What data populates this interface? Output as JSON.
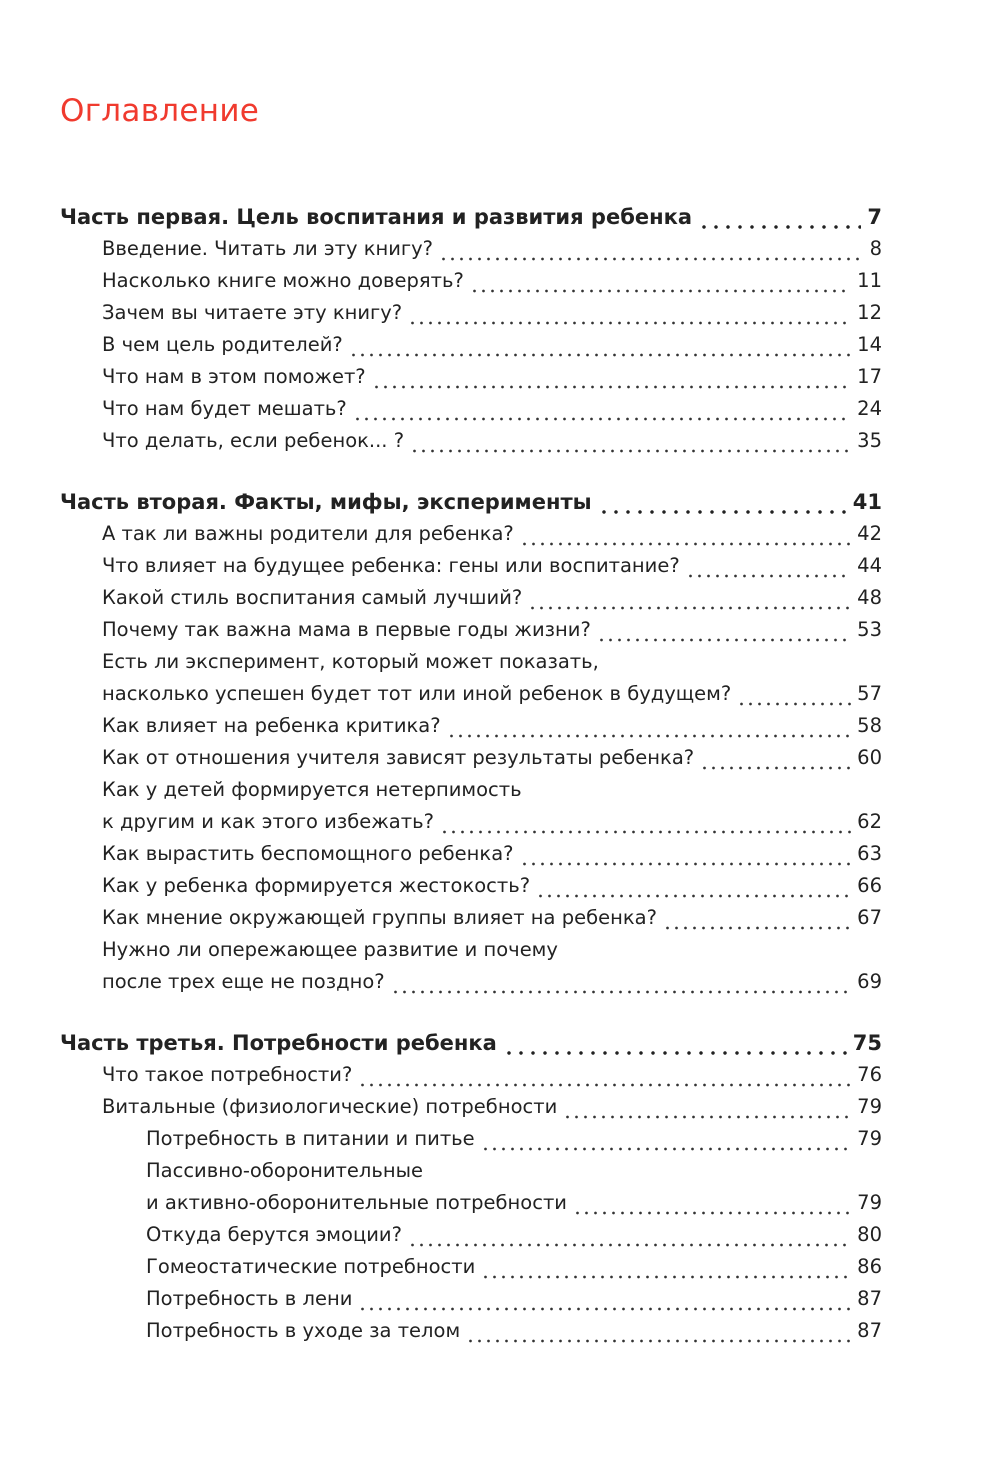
{
  "title": "Оглавление",
  "accent_color": "#f03a2e",
  "entries": [
    {
      "level": 0,
      "text": "Часть первая. Цель воспитания и развития ребенка",
      "page": "7"
    },
    {
      "level": 1,
      "text": "Введение. Читать ли эту книгу?",
      "page": "8"
    },
    {
      "level": 1,
      "text": "Насколько книге можно доверять?",
      "page": "11"
    },
    {
      "level": 1,
      "text": "Зачем вы читаете эту книгу?",
      "page": "12"
    },
    {
      "level": 1,
      "text": "В чем цель родителей?",
      "page": "14"
    },
    {
      "level": 1,
      "text": "Что нам в этом поможет?",
      "page": "17"
    },
    {
      "level": 1,
      "text": "Что нам будет мешать?",
      "page": "24"
    },
    {
      "level": 1,
      "text": "Что делать, если ребенок... ?",
      "page": "35"
    },
    {
      "level": 0,
      "text": "Часть вторая. Факты, мифы, эксперименты",
      "page": "41"
    },
    {
      "level": 1,
      "text": "А так ли важны родители для ребенка?",
      "page": "42"
    },
    {
      "level": 1,
      "text": "Что влияет на будущее ребенка: гены или воспитание?",
      "page": "44"
    },
    {
      "level": 1,
      "text": "Какой стиль воспитания самый лучший?",
      "page": "48"
    },
    {
      "level": 1,
      "text": "Почему так важна мама в первые годы жизни?",
      "page": "53"
    },
    {
      "level": 1,
      "text": "Есть ли эксперимент, который может показать,",
      "text2": "насколько успешен будет тот или иной ребенок в будущем?",
      "page": "57"
    },
    {
      "level": 1,
      "text": "Как влияет на ребенка критика?",
      "page": "58"
    },
    {
      "level": 1,
      "text": "Как от отношения учителя зависят результаты ребенка?",
      "page": "60"
    },
    {
      "level": 1,
      "text": "Как у детей формируется нетерпимость",
      "text2": "к другим и как этого избежать?",
      "page": "62"
    },
    {
      "level": 1,
      "text": "Как вырастить беспомощного ребенка?",
      "page": "63"
    },
    {
      "level": 1,
      "text": "Как у ребенка формируется жестокость?",
      "page": "66"
    },
    {
      "level": 1,
      "text": "Как мнение окружающей группы влияет на ребенка?",
      "page": "67"
    },
    {
      "level": 1,
      "text": "Нужно ли опережающее развитие и почему",
      "text2": "после трех еще не поздно?",
      "page": "69"
    },
    {
      "level": 0,
      "text": "Часть третья. Потребности ребенка",
      "page": "75"
    },
    {
      "level": 1,
      "text": "Что такое потребности?",
      "page": "76"
    },
    {
      "level": 1,
      "text": "Витальные (физиологические) потребности",
      "page": "79"
    },
    {
      "level": 2,
      "text": "Потребность в питании и питье",
      "page": "79"
    },
    {
      "level": 2,
      "text": "Пассивно-оборонительные",
      "text2": "и активно-оборонительные потребности",
      "page": "79"
    },
    {
      "level": 2,
      "text": "Откуда берутся эмоции?",
      "page": "80"
    },
    {
      "level": 2,
      "text": "Гомеостатические потребности",
      "page": "86"
    },
    {
      "level": 2,
      "text": "Потребность в лени",
      "page": "87"
    },
    {
      "level": 2,
      "text": "Потребность в уходе за телом",
      "page": "87"
    }
  ]
}
